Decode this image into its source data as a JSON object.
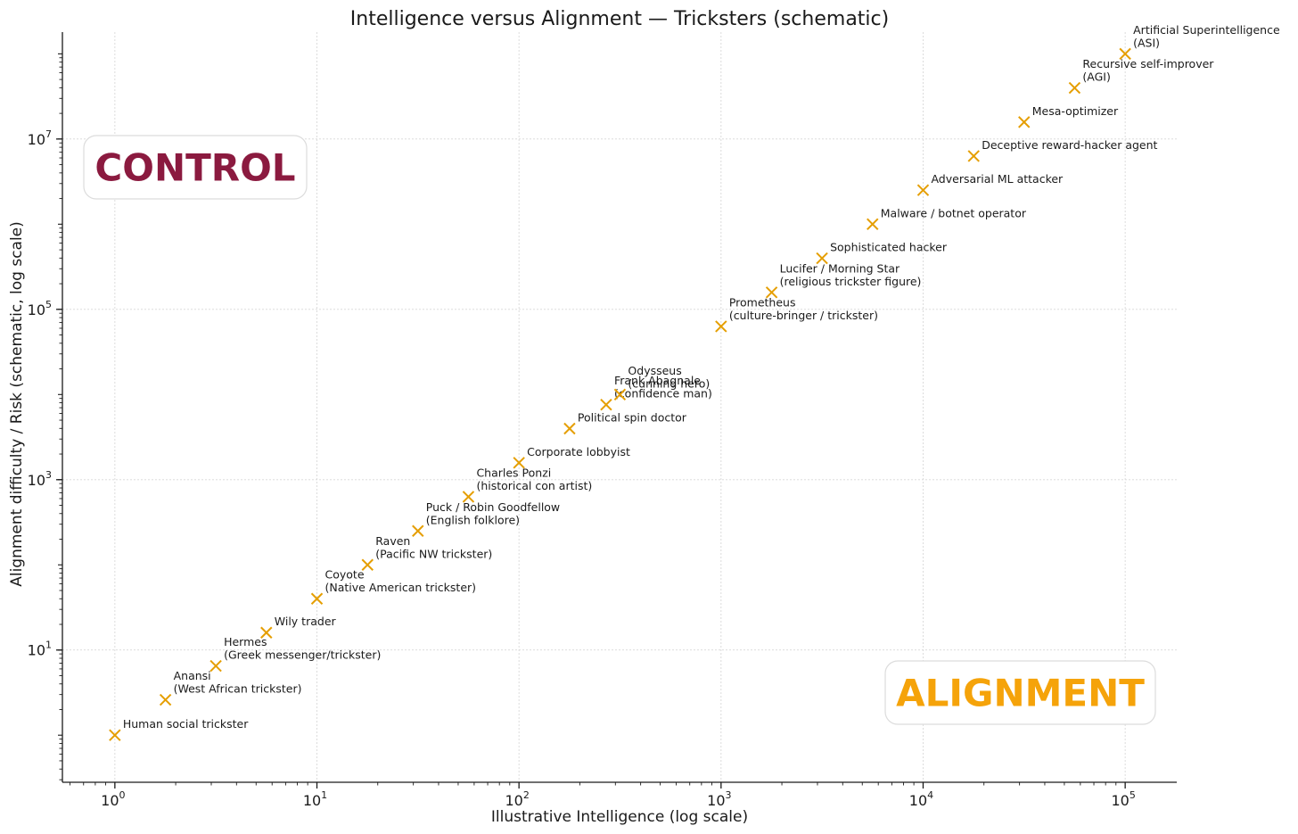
{
  "chart_data": {
    "type": "scatter",
    "title": "Intelligence versus Alignment — Tricksters (schematic)",
    "xlabel": "Illustrative Intelligence (log scale)",
    "ylabel": "Alignment difficulty / Risk (schematic, log scale)",
    "x_scale": "log",
    "y_scale": "log",
    "xlim": [
      0.55,
      180000
    ],
    "ylim": [
      0.28,
      180000000
    ],
    "x_ticks": [
      {
        "value": 1,
        "base": "10",
        "exp": "0"
      },
      {
        "value": 10,
        "base": "10",
        "exp": "1"
      },
      {
        "value": 100,
        "base": "10",
        "exp": "2"
      },
      {
        "value": 1000,
        "base": "10",
        "exp": "3"
      },
      {
        "value": 10000,
        "base": "10",
        "exp": "4"
      },
      {
        "value": 100000,
        "base": "10",
        "exp": "5"
      }
    ],
    "y_ticks": [
      {
        "value": 10,
        "base": "10",
        "exp": "1"
      },
      {
        "value": 1000,
        "base": "10",
        "exp": "3"
      },
      {
        "value": 100000,
        "base": "10",
        "exp": "5"
      },
      {
        "value": 10000000,
        "base": "10",
        "exp": "7"
      }
    ],
    "grid": true,
    "marker": "x",
    "marker_color": "#e59e00",
    "points": [
      {
        "x": 1,
        "y": 1,
        "label": [
          "Human social trickster"
        ]
      },
      {
        "x": 1.78,
        "y": 2.6,
        "label": [
          "Anansi",
          "(West African trickster)"
        ]
      },
      {
        "x": 3.16,
        "y": 6.5,
        "label": [
          "Hermes",
          "(Greek messenger/trickster)"
        ]
      },
      {
        "x": 5.62,
        "y": 16,
        "label": [
          "Wily trader"
        ]
      },
      {
        "x": 10,
        "y": 40,
        "label": [
          "Coyote",
          "(Native American trickster)"
        ]
      },
      {
        "x": 17.8,
        "y": 100,
        "label": [
          "Raven",
          "(Pacific NW trickster)"
        ]
      },
      {
        "x": 31.6,
        "y": 250,
        "label": [
          "Puck / Robin Goodfellow",
          "(English folklore)"
        ]
      },
      {
        "x": 56.2,
        "y": 630,
        "label": [
          "Charles Ponzi",
          "(historical con artist)"
        ]
      },
      {
        "x": 100,
        "y": 1580,
        "label": [
          "Corporate lobbyist"
        ]
      },
      {
        "x": 178,
        "y": 3980,
        "label": [
          "Political spin doctor"
        ]
      },
      {
        "x": 270,
        "y": 7600,
        "label": [
          "Frank Abagnale",
          "(confidence man)"
        ]
      },
      {
        "x": 316,
        "y": 10000,
        "label": [
          "Odysseus",
          "(cunning hero)"
        ]
      },
      {
        "x": 1000,
        "y": 63000,
        "label": [
          "Prometheus",
          "(culture-bringer / trickster)"
        ]
      },
      {
        "x": 1780,
        "y": 158000,
        "label": [
          "Lucifer / Morning Star",
          "(religious trickster figure)"
        ]
      },
      {
        "x": 3160,
        "y": 398000,
        "label": [
          "Sophisticated hacker"
        ]
      },
      {
        "x": 5620,
        "y": 1000000,
        "label": [
          "Malware / botnet operator"
        ]
      },
      {
        "x": 10000,
        "y": 2510000,
        "label": [
          "Adversarial ML attacker"
        ]
      },
      {
        "x": 17800,
        "y": 6310000,
        "label": [
          "Deceptive reward-hacker agent"
        ]
      },
      {
        "x": 31600,
        "y": 15800000,
        "label": [
          "Mesa-optimizer"
        ]
      },
      {
        "x": 56200,
        "y": 39800000,
        "label": [
          "Recursive self-improver",
          "(AGI)"
        ]
      },
      {
        "x": 100000,
        "y": 100000000,
        "label": [
          "Artificial Superintelligence",
          "(ASI)"
        ]
      }
    ],
    "regions": [
      {
        "text": "CONTROL",
        "color": "#8b1a3f",
        "placement": "upper-left"
      },
      {
        "text": "ALIGNMENT",
        "color": "#f5a30a",
        "placement": "lower-right"
      }
    ]
  }
}
